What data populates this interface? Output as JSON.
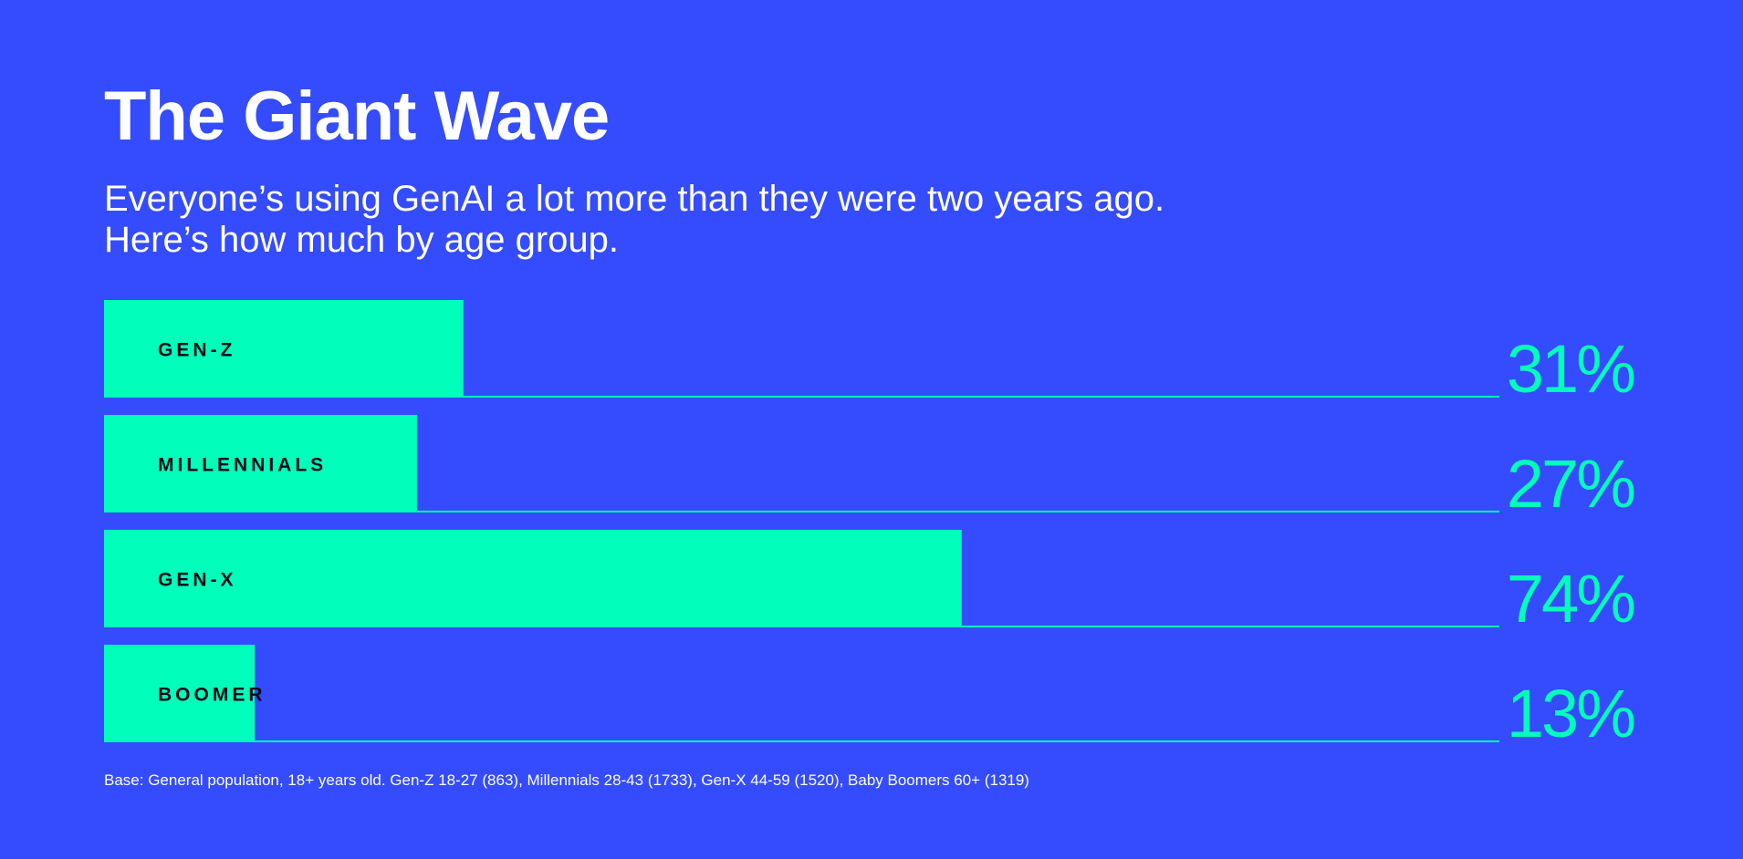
{
  "title": "The Giant Wave",
  "subtitle": {
    "line1": "Everyone’s using GenAI a lot more than they were two years ago.",
    "line2": "Here’s how much by age group."
  },
  "footnote": "Base: General population, 18+ years old. Gen-Z 18-27 (863), Millennials 28-43 (1733), Gen-X 44-59 (1520), Baby Boomers 60+ (1319)",
  "colors": {
    "background": "#344cfd",
    "bar": "#00ffba",
    "bar_label": "#0a0a1a",
    "value_text": "#00ffba",
    "baseline": "#00ffba"
  },
  "chart_data": {
    "type": "bar",
    "orientation": "horizontal",
    "categories": [
      "GEN-Z",
      "MILLENNIALS",
      "GEN-X",
      "BOOMER"
    ],
    "values": [
      31,
      27,
      74,
      13
    ],
    "value_labels": [
      "31%",
      "27%",
      "74%",
      "13%"
    ],
    "xlim": [
      0,
      100
    ],
    "grid": false,
    "legend": "none"
  }
}
